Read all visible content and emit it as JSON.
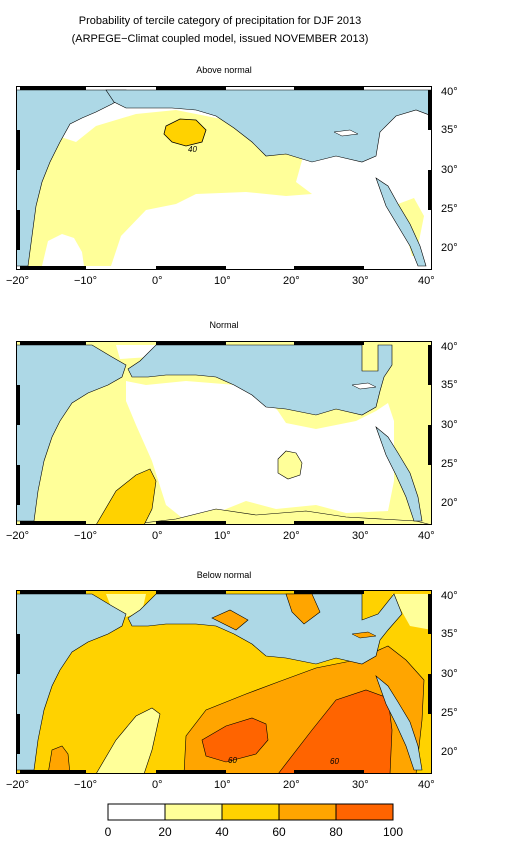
{
  "title_line1": "Probability of tercile category of precipitation for DJF 2013",
  "title_line2": "(ARPEGE−Climat coupled model, issued NOVEMBER 2013)",
  "panels": [
    {
      "title": "Above normal",
      "contour_labels": [
        "40"
      ]
    },
    {
      "title": "Normal",
      "contour_labels": []
    },
    {
      "title": "Below normal",
      "contour_labels": [
        "60",
        "60"
      ]
    }
  ],
  "lon_ticks": [
    "−20°",
    "−10°",
    "0°",
    "10°",
    "20°",
    "30°",
    "40°"
  ],
  "lat_ticks": [
    "40°",
    "35°",
    "30°",
    "25°",
    "20°"
  ],
  "legend": {
    "ticks": [
      "0",
      "20",
      "40",
      "60",
      "80",
      "100"
    ],
    "colors": [
      "#ffffff",
      "#ffff99",
      "#ffd200",
      "#ffa500",
      "#ff6400"
    ]
  },
  "colors": {
    "sea": "#add8e6",
    "class_20_40": "#ffff99",
    "class_40_60": "#ffd200",
    "class_60_80": "#ffa500",
    "class_80_100": "#ff6400"
  }
}
